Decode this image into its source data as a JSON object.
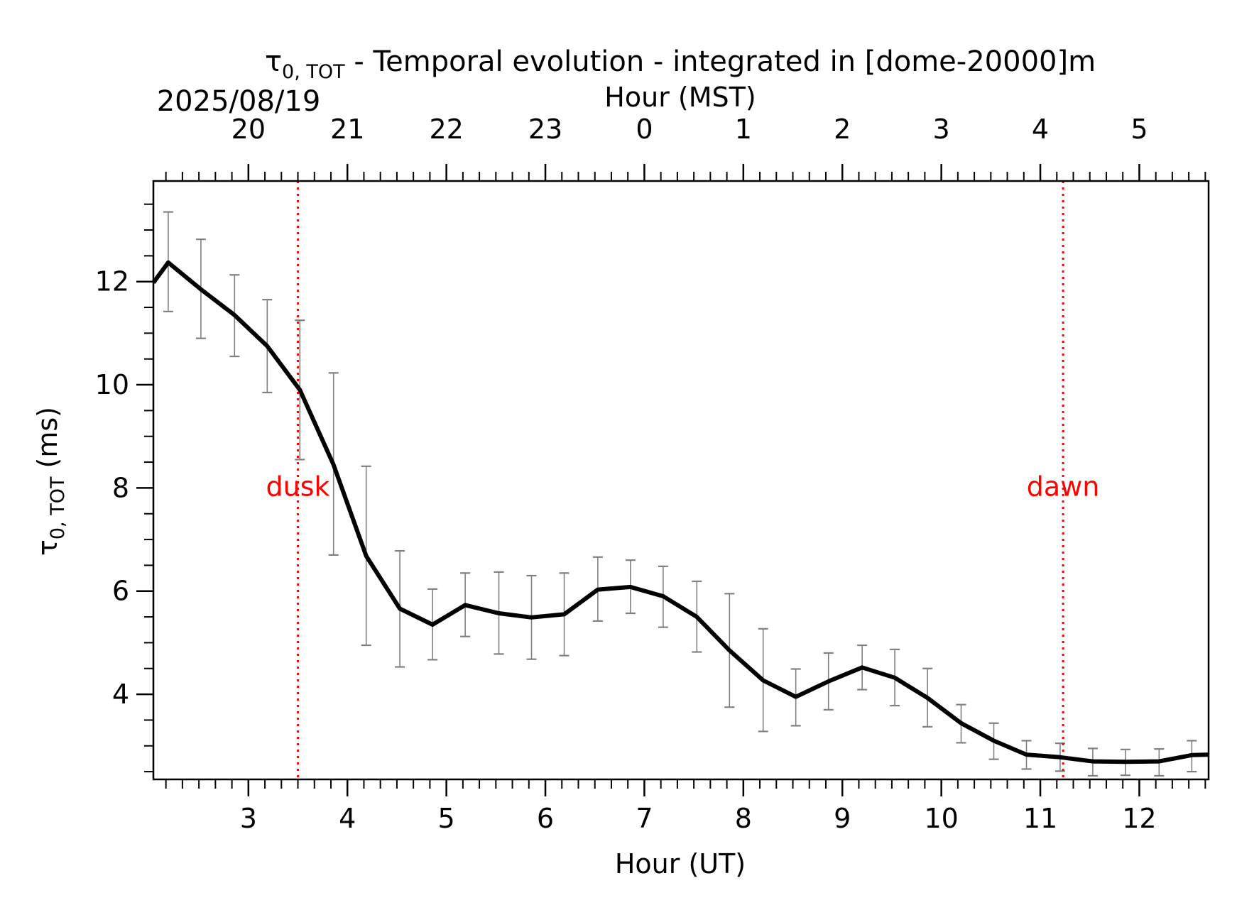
{
  "chart_data": {
    "type": "line",
    "title_symbol": "τ",
    "title_subscript": "0, TOT",
    "title_rest": " - Temporal evolution - integrated in [dome-20000]m",
    "date_label": "2025/08/19",
    "xlabel": "Hour (UT)",
    "xlabel_top": "Hour (MST)",
    "ylabel_symbol": "τ",
    "ylabel_subscript": "0, TOT",
    "ylabel_rest": " (ms)",
    "xlim": [
      2.04,
      12.7
    ],
    "ylim": [
      2.35,
      13.95
    ],
    "x_ticks": [
      3,
      4,
      5,
      6,
      7,
      8,
      9,
      10,
      11,
      12
    ],
    "x_tick_labels": [
      "3",
      "4",
      "5",
      "6",
      "7",
      "8",
      "9",
      "10",
      "11",
      "12"
    ],
    "x_ticks_top": [
      3,
      4,
      5,
      6,
      7,
      8,
      9,
      10,
      11,
      12
    ],
    "x_tick_labels_top": [
      "20",
      "21",
      "22",
      "23",
      "0",
      "1",
      "2",
      "3",
      "4",
      "5"
    ],
    "y_ticks": [
      4,
      6,
      8,
      10,
      12
    ],
    "y_tick_labels": [
      "4",
      "6",
      "8",
      "10",
      "12"
    ],
    "grid": false,
    "line_color": "#000000",
    "errorbar_color": "#808080",
    "series": [
      {
        "x": [
          2.04,
          2.19,
          2.52,
          2.86,
          3.19,
          3.52,
          3.86,
          4.19,
          4.53,
          4.86,
          5.19,
          5.53,
          5.86,
          6.19,
          6.53,
          6.86,
          7.19,
          7.53,
          7.86,
          8.2,
          8.53,
          8.86,
          9.2,
          9.53,
          9.86,
          10.2,
          10.53,
          10.86,
          11.2,
          11.53,
          11.86,
          12.2,
          12.53,
          12.7
        ],
        "y": [
          11.98,
          12.37,
          11.85,
          11.35,
          10.75,
          9.9,
          8.45,
          6.68,
          5.66,
          5.35,
          5.73,
          5.57,
          5.49,
          5.55,
          6.03,
          6.08,
          5.9,
          5.5,
          4.85,
          4.27,
          3.95,
          4.25,
          4.52,
          4.32,
          3.93,
          3.44,
          3.1,
          2.83,
          2.78,
          2.7,
          2.69,
          2.7,
          2.82,
          2.83
        ]
      }
    ],
    "errorbars": {
      "x": [
        2.19,
        2.52,
        2.86,
        3.19,
        3.52,
        3.86,
        4.19,
        4.53,
        4.86,
        5.19,
        5.53,
        5.86,
        6.19,
        6.53,
        6.86,
        7.19,
        7.53,
        7.86,
        8.2,
        8.53,
        8.86,
        9.2,
        9.53,
        9.86,
        10.2,
        10.53,
        10.86,
        11.2,
        11.53,
        11.86,
        12.2,
        12.53
      ],
      "low": [
        11.42,
        10.9,
        10.55,
        9.85,
        8.55,
        6.7,
        4.95,
        4.53,
        4.67,
        5.12,
        4.78,
        4.68,
        4.75,
        5.42,
        5.57,
        5.3,
        4.82,
        3.75,
        3.28,
        3.39,
        3.7,
        4.09,
        3.78,
        3.37,
        3.06,
        2.74,
        2.55,
        2.51,
        2.42,
        2.43,
        2.42,
        2.5
      ],
      "high": [
        13.35,
        12.82,
        12.13,
        11.65,
        11.25,
        10.23,
        8.42,
        6.78,
        6.04,
        6.35,
        6.37,
        6.3,
        6.35,
        6.66,
        6.6,
        6.48,
        6.19,
        5.95,
        5.27,
        4.49,
        4.8,
        4.95,
        4.87,
        4.5,
        3.8,
        3.44,
        3.1,
        3.05,
        2.95,
        2.93,
        2.94,
        3.1
      ]
    },
    "vlines": [
      {
        "x": 3.5,
        "label": "dusk",
        "color": "#ff0000"
      },
      {
        "x": 11.23,
        "label": "dawn",
        "color": "#ff0000"
      }
    ]
  }
}
